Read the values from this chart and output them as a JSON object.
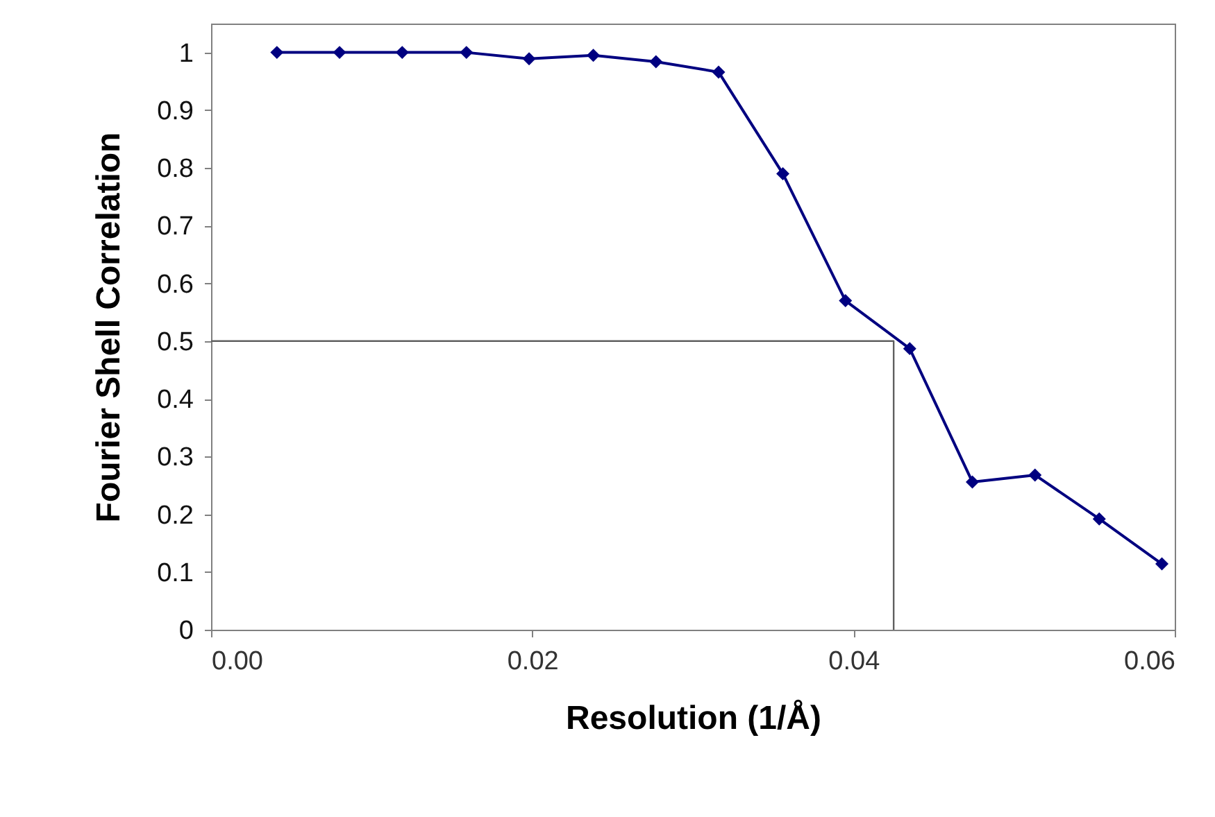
{
  "chart_data": {
    "type": "line",
    "xlabel": "Resolution (1/Å)",
    "ylabel": "Fourier Shell Correlation",
    "xlim": [
      0,
      0.06
    ],
    "xticks": [
      {
        "value": 0,
        "label": "0.00"
      },
      {
        "value": 0.02,
        "label": "0.02"
      },
      {
        "value": 0.04,
        "label": "0.04"
      },
      {
        "value": 0.06,
        "label": "0.06"
      }
    ],
    "ylim": [
      0,
      1.05
    ],
    "yticks": [
      0,
      0.1,
      0.2,
      0.3,
      0.4,
      0.5,
      0.6,
      0.7,
      0.8,
      0.9,
      1
    ],
    "grid": false,
    "marker": "diamond",
    "line_style": "solid",
    "series": [
      {
        "color": "#000080",
        "x": [
          0.0041,
          0.008,
          0.0119,
          0.0159,
          0.0198,
          0.0238,
          0.0277,
          0.0316,
          0.0356,
          0.0395,
          0.0435,
          0.0474,
          0.0513,
          0.0553,
          0.0592
        ],
        "values": [
          1,
          1,
          1,
          1,
          0.989,
          0.995,
          0.984,
          0.966,
          0.79,
          0.57,
          0.487,
          0.256,
          0.268,
          0.192,
          0.114
        ]
      },
      {
        "color": "#606060",
        "marker": "none",
        "x": [
          0,
          0.0425,
          0.0425
        ],
        "values": [
          0.5,
          0.5,
          0
        ]
      }
    ]
  }
}
